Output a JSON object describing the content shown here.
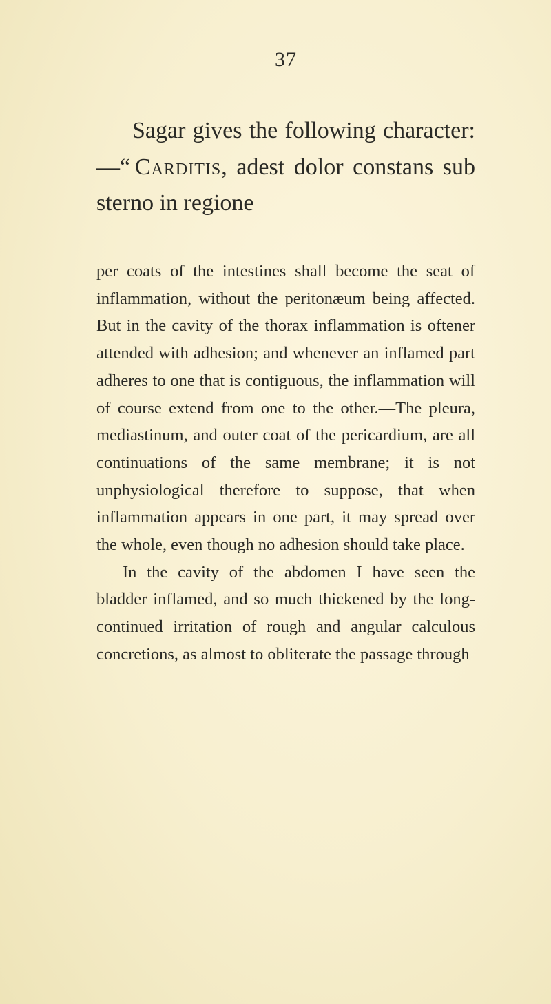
{
  "page_number": "37",
  "main": {
    "text": "Sagar gives the following character:—\" CARDITIS, adest dolor constans sub sterno in regione"
  },
  "footnote": {
    "para1": "per coats of the intestines shall become the seat of inflammation, without the peritonæum being affected. But in the cavity of the thorax inflammation is oftener attended with adhesion; and whenever an inflamed part adheres to one that is contiguous, the inflammation will of course extend from one to the other.—The pleura, mediastinum, and outer coat of the pericardium, are all continuations of the same membrane; it is not unphysiological therefore to suppose, that when inflammation appears in one part, it may spread over the whole, even though no adhesion should take place.",
    "para2": "In the cavity of the abdomen I have seen the bladder inflamed, and so much thickened by the long-continued irritation of rough and angular calculous concretions, as almost to obliterate the passage through"
  },
  "colors": {
    "text": "#2a2a26",
    "bg_center": "#fdf6df",
    "bg_mid": "#f7efcf",
    "bg_edge": "#eee4b8"
  },
  "typography": {
    "main_fontsize": 34,
    "footnote_fontsize": 24.5,
    "pagenum_fontsize": 30,
    "font_family": "Georgia, 'Times New Roman', serif"
  }
}
